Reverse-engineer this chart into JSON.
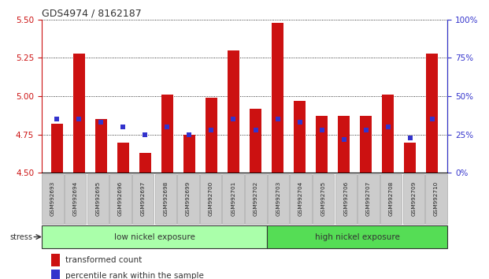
{
  "title": "GDS4974 / 8162187",
  "categories": [
    "GSM992693",
    "GSM992694",
    "GSM992695",
    "GSM992696",
    "GSM992697",
    "GSM992698",
    "GSM992699",
    "GSM992700",
    "GSM992701",
    "GSM992702",
    "GSM992703",
    "GSM992704",
    "GSM992705",
    "GSM992706",
    "GSM992707",
    "GSM992708",
    "GSM992709",
    "GSM992710"
  ],
  "bar_values": [
    4.82,
    5.28,
    4.85,
    4.7,
    4.63,
    5.01,
    4.75,
    4.99,
    5.3,
    4.92,
    5.48,
    4.97,
    4.87,
    4.87,
    4.87,
    5.01,
    4.7,
    5.28
  ],
  "percentile_values": [
    35,
    35,
    33,
    30,
    25,
    30,
    25,
    28,
    35,
    28,
    35,
    33,
    28,
    22,
    28,
    30,
    23,
    35
  ],
  "baseline": 4.5,
  "ylim_left": [
    4.5,
    5.5
  ],
  "ylim_right": [
    0,
    100
  ],
  "yticks_left": [
    4.5,
    4.75,
    5.0,
    5.25,
    5.5
  ],
  "yticks_right": [
    0,
    25,
    50,
    75,
    100
  ],
  "bar_color": "#cc1111",
  "marker_color": "#3333cc",
  "bg_color": "#ffffff",
  "low_group_label": "low nickel exposure",
  "high_group_label": "high nickel exposure",
  "low_group_count": 10,
  "high_group_count": 8,
  "stress_label": "stress",
  "legend_bar_label": "transformed count",
  "legend_marker_label": "percentile rank within the sample",
  "title_color": "#333333",
  "tick_color_left": "#cc1111",
  "tick_color_right": "#3333cc",
  "bar_width": 0.55,
  "low_group_color": "#aaffaa",
  "high_group_color": "#55dd55",
  "xticklabel_bg": "#cccccc"
}
